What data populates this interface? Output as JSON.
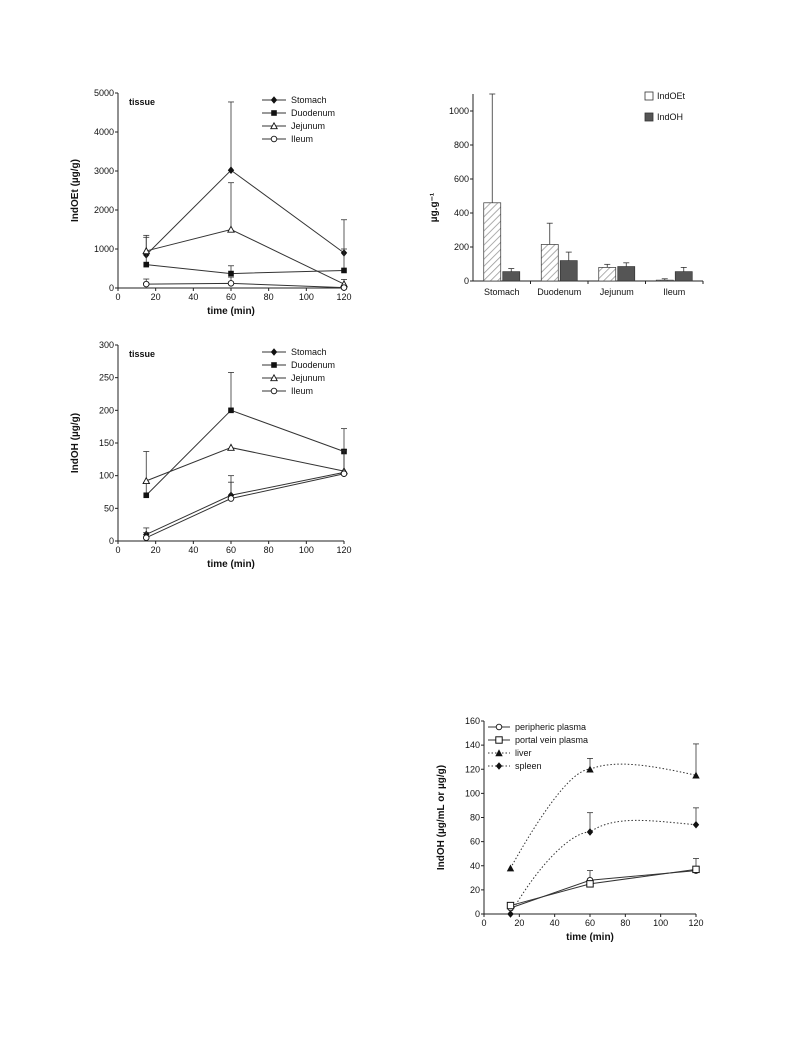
{
  "chart_data": [
    {
      "type": "line",
      "annotation": "tissue",
      "xlabel": "time (min)",
      "ylabel": "IndOEt (µg/g)",
      "xlim": [
        0,
        120
      ],
      "ylim": [
        0,
        5000
      ],
      "xticks": [
        0,
        20,
        40,
        60,
        80,
        100,
        120
      ],
      "yticks": [
        0,
        1000,
        2000,
        3000,
        4000,
        5000
      ],
      "x": [
        15,
        60,
        120
      ],
      "legend_position": "top-right",
      "series": [
        {
          "name": "Stomach",
          "marker": "diamond",
          "values": [
            850,
            3020,
            900
          ],
          "errors": [
            500,
            1750,
            850
          ]
        },
        {
          "name": "Duodenum",
          "marker": "square",
          "values": [
            600,
            370,
            450
          ],
          "errors": [
            300,
            200,
            550
          ]
        },
        {
          "name": "Jejunum",
          "marker": "triangle-open",
          "values": [
            950,
            1500,
            100
          ],
          "errors": [
            350,
            1200,
            120
          ]
        },
        {
          "name": "Ileum",
          "marker": "circle-open",
          "values": [
            100,
            120,
            10
          ],
          "errors": [
            130,
            160,
            30
          ]
        }
      ]
    },
    {
      "type": "bar",
      "ylabel": "µg.g⁻¹",
      "ylim": [
        0,
        1100
      ],
      "yticks": [
        0,
        200,
        400,
        600,
        800,
        1000
      ],
      "categories": [
        "Stomach",
        "Duodenum",
        "Jejunum",
        "Ileum"
      ],
      "legend_position": "top-right",
      "series": [
        {
          "name": "IndOEt",
          "style": "hatched",
          "values": [
            460,
            215,
            80,
            5
          ],
          "errors": [
            640,
            125,
            18,
            8
          ]
        },
        {
          "name": "IndOH",
          "style": "dark-grey",
          "values": [
            55,
            120,
            85,
            55
          ],
          "errors": [
            18,
            50,
            22,
            25
          ]
        }
      ]
    },
    {
      "type": "line",
      "annotation": "tissue",
      "xlabel": "time (min)",
      "ylabel": "IndOH (µg/g)",
      "xlim": [
        0,
        120
      ],
      "ylim": [
        0,
        300
      ],
      "xticks": [
        0,
        20,
        40,
        60,
        80,
        100,
        120
      ],
      "yticks": [
        0,
        50,
        100,
        150,
        200,
        250,
        300
      ],
      "x": [
        15,
        60,
        120
      ],
      "legend_position": "top-right",
      "series": [
        {
          "name": "Stomach",
          "marker": "diamond",
          "values": [
            10,
            70,
            105
          ],
          "errors": [
            10,
            30,
            35
          ]
        },
        {
          "name": "Duodenum",
          "marker": "square",
          "values": [
            70,
            200,
            137
          ],
          "errors": [
            20,
            58,
            35
          ]
        },
        {
          "name": "Jejunum",
          "marker": "triangle-open",
          "values": [
            92,
            143,
            107
          ],
          "errors": [
            45,
            0,
            0
          ]
        },
        {
          "name": "Ileum",
          "marker": "circle-open",
          "values": [
            5,
            65,
            103
          ],
          "errors": [
            8,
            25,
            35
          ]
        }
      ]
    },
    {
      "type": "line",
      "xlabel": "time (min)",
      "ylabel": "IndOH (µg/mL or µg/g)",
      "xlim": [
        0,
        120
      ],
      "ylim": [
        0,
        160
      ],
      "xticks": [
        0,
        20,
        40,
        60,
        80,
        100,
        120
      ],
      "yticks": [
        0,
        20,
        40,
        60,
        80,
        100,
        120,
        140,
        160
      ],
      "x": [
        15,
        60,
        120
      ],
      "legend_position": "top-left",
      "series": [
        {
          "name": "peripheric plasma",
          "marker": "circle-open",
          "line": "solid",
          "values": [
            5,
            28,
            36
          ],
          "errors": [
            0,
            8,
            10
          ]
        },
        {
          "name": "portal vein plasma",
          "marker": "square-open",
          "line": "solid",
          "values": [
            7,
            25,
            37
          ],
          "errors": [
            0,
            0,
            0
          ]
        },
        {
          "name": "liver",
          "marker": "triangle",
          "line": "dotted",
          "values": [
            38,
            120,
            115
          ],
          "errors": [
            0,
            9,
            26
          ]
        },
        {
          "name": "spleen",
          "marker": "diamond",
          "line": "dotted",
          "values": [
            0,
            68,
            74
          ],
          "errors": [
            0,
            16,
            14
          ]
        }
      ]
    }
  ]
}
